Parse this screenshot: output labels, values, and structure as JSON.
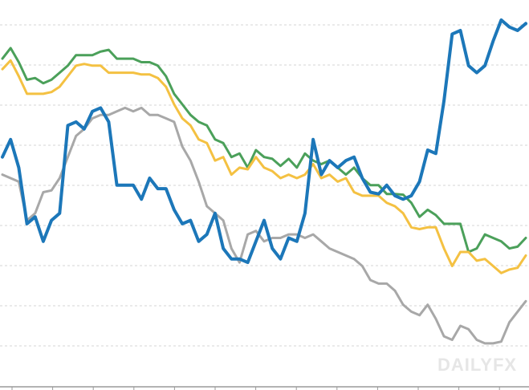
{
  "chart_data": {
    "type": "line",
    "title": "",
    "xlabel": "",
    "ylabel": "",
    "grid": true,
    "legend": "none",
    "x": [
      0,
      1,
      2,
      3,
      4,
      5,
      6,
      7,
      8,
      9,
      10,
      11,
      12,
      13,
      14,
      15,
      16,
      17,
      18,
      19,
      20,
      21,
      22,
      23,
      24,
      25,
      26,
      27,
      28,
      29,
      30,
      31,
      32,
      33,
      34,
      35,
      36,
      37,
      38,
      39,
      40,
      41,
      42,
      43,
      44,
      45,
      46,
      47,
      48,
      49,
      50,
      51,
      52,
      53,
      54,
      55,
      56,
      57,
      58,
      59,
      60,
      61,
      62,
      63,
      64
    ],
    "xlim": [
      0,
      64
    ],
    "ylim": [
      0,
      100
    ],
    "series": [
      {
        "color": "#4ba05a",
        "width": 3,
        "values": [
          84,
          87,
          83,
          78,
          78.5,
          77,
          78,
          80,
          82,
          85,
          85,
          85,
          86,
          86.5,
          84,
          84,
          84,
          83,
          83,
          82,
          79,
          74,
          71,
          68,
          66,
          65,
          61,
          60,
          56,
          57,
          53,
          58,
          56,
          55.5,
          53.5,
          55.5,
          53,
          57,
          55,
          54,
          55,
          53,
          51,
          53,
          50,
          48,
          48,
          45.5,
          45.5,
          45.3,
          43,
          39,
          41,
          39.5,
          37,
          37,
          37,
          29,
          30,
          34,
          33,
          32,
          30,
          30.5,
          33
        ]
      },
      {
        "color": "#f4c142",
        "width": 3,
        "values": [
          81,
          83.5,
          79,
          74,
          74,
          74,
          74.5,
          76,
          79,
          82,
          82.5,
          82,
          82,
          80,
          80,
          80,
          80,
          79.5,
          79.5,
          78.5,
          76,
          71,
          67,
          65,
          61,
          60,
          55,
          56,
          51,
          53,
          52.5,
          56,
          53,
          52,
          50,
          51,
          50,
          51,
          54,
          50,
          51,
          49,
          50,
          46,
          45,
          45,
          45,
          43,
          42,
          40,
          36,
          35.5,
          36,
          36,
          30,
          25,
          29,
          29,
          26.5,
          27,
          25,
          23,
          24,
          24.5,
          28
        ]
      },
      {
        "color": "#a8a8a8",
        "width": 3,
        "values": [
          51,
          50,
          49,
          38,
          40,
          46,
          46.5,
          50,
          56,
          62,
          64,
          67,
          68,
          68,
          69,
          70,
          69,
          70,
          68,
          68,
          67,
          66,
          59,
          55,
          49,
          42,
          40,
          38,
          30,
          26,
          34,
          35,
          32,
          33,
          33,
          34,
          34,
          33,
          34,
          32,
          30,
          29,
          28,
          27,
          25,
          21,
          20,
          20,
          18,
          14,
          12,
          11,
          14,
          10,
          5,
          4,
          8,
          7,
          4,
          3,
          3,
          3.5,
          9,
          12,
          15
        ]
      },
      {
        "color": "#1c77b9",
        "width": 4,
        "values": [
          56,
          61,
          53,
          37,
          39,
          32,
          38,
          40,
          65,
          66,
          64,
          69,
          70,
          66,
          48,
          48,
          48,
          44,
          50,
          47,
          47,
          41,
          37,
          38,
          32,
          34,
          40,
          30,
          27,
          27,
          26,
          32,
          38,
          30,
          27,
          33,
          32,
          40,
          61,
          51,
          55,
          53,
          55,
          56,
          50,
          46,
          45.5,
          48,
          45,
          44,
          45,
          49,
          58,
          57,
          72,
          91,
          92,
          82,
          80,
          82,
          89,
          95,
          93,
          92,
          94
        ]
      }
    ]
  },
  "watermark": {
    "text": "DAILYFX"
  }
}
